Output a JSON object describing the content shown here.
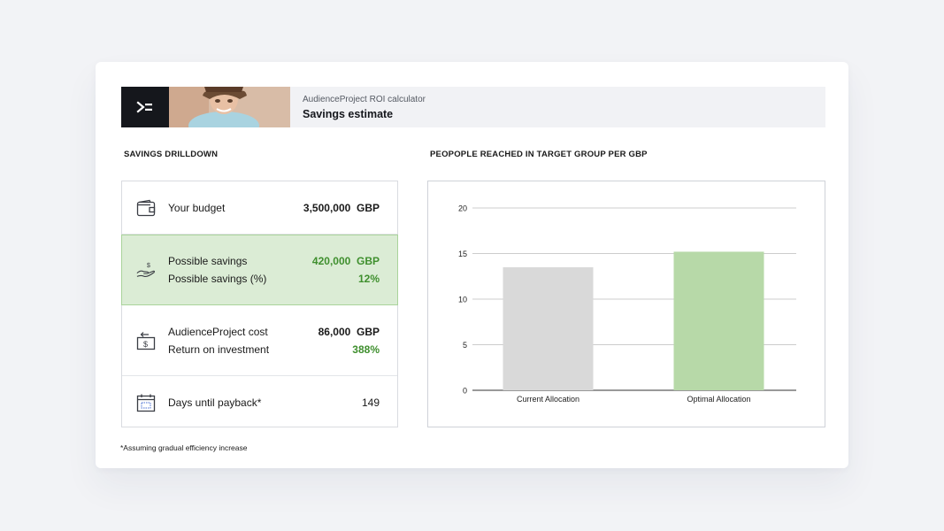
{
  "header": {
    "subtitle": "AudienceProject ROI calculator",
    "title": "Savings estimate",
    "logo_icon": "audienceproject-logo-icon"
  },
  "drilldown": {
    "label": "SAVINGS DRILLDOWN",
    "budget": {
      "label": "Your budget",
      "value": "3,500,000",
      "unit": "GBP",
      "icon": "wallet-icon"
    },
    "savings": {
      "label": "Possible savings",
      "value": "420,000",
      "unit": "GBP",
      "pct_label": "Possible savings (%)",
      "pct_value": "12%",
      "icon": "hand-money-icon"
    },
    "cost": {
      "label": "AudienceProject cost",
      "value": "86,000",
      "unit": "GBP",
      "roi_label": "Return on investment",
      "roi_value": "388%",
      "icon": "money-exchange-icon"
    },
    "payback": {
      "label": "Days until payback*",
      "value": "149",
      "icon": "calendar-icon"
    }
  },
  "chart_label": "PEOPOPLE REACHED IN TARGET GROUP PER GBP",
  "chart_data": {
    "type": "bar",
    "title": "PEOPOPLE REACHED IN TARGET GROUP PER GBP",
    "categories": [
      "Current Allocation",
      "Optimal Allocation"
    ],
    "values": [
      13.5,
      15.2
    ],
    "colors": [
      "#d9d9d9",
      "#b7d9a8"
    ],
    "ylim": [
      0,
      20
    ],
    "yticks": [
      "0",
      "5",
      "10",
      "15",
      "20"
    ],
    "grid": true
  },
  "footnote": "*Assuming gradual efficiency increase",
  "colors": {
    "accent_green": "#3f8f2e",
    "highlight_bg": "#dbecd5"
  }
}
